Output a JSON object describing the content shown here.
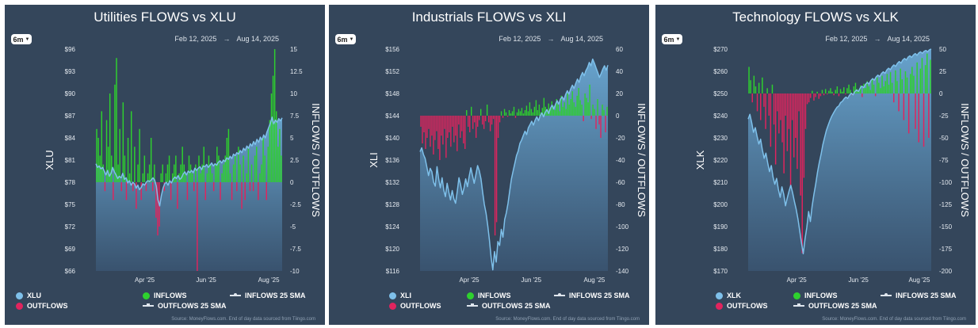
{
  "colors": {
    "background": "#34465b",
    "inflows": "#2ed12e",
    "outflows": "#e0245e",
    "price_line": "#7ec0ea",
    "price_fill_top": "#6aa8d3",
    "price_fill_bottom": "#3a5572"
  },
  "legend": {
    "price_label_xlu": "XLU",
    "price_label_xli": "XLI",
    "price_label_xlk": "XLK",
    "inflows": "INFLOWS",
    "outflows": "OUTFLOWS",
    "inflows_sma": "INFLOWS 25 SMA",
    "outflows_sma": "OUTFLOWS 25 SMA"
  },
  "source": "Source: MoneyFlows.com. End of day data sourced from Tiingo.com",
  "chart_data": [
    {
      "type": "bar",
      "title": "Utilities FLOWS vs XLU",
      "range_button": "6m",
      "date_from": "Feb 12, 2025",
      "date_to": "Aug 14, 2025",
      "ylabel_left": "XLU",
      "ylabel_right": "INFLOWS / OUTFLOWS",
      "x_ticks": [
        "Apr '25",
        "Jun '25",
        "Aug '25"
      ],
      "left_ticks": [
        "$66",
        "$69",
        "$72",
        "$75",
        "$78",
        "$81",
        "$84",
        "$87",
        "$90",
        "$93",
        "$96"
      ],
      "left_range": [
        66,
        96
      ],
      "right_ticks": [
        "-10",
        "-7.5",
        "-5",
        "-2.5",
        "0",
        "2.5",
        "5",
        "7.5",
        "10",
        "12.5",
        "15"
      ],
      "right_range": [
        -10,
        15
      ],
      "flows": [
        6,
        5,
        3,
        8,
        2,
        -1,
        7,
        4,
        10,
        3,
        -2,
        11,
        14,
        2,
        6,
        -1,
        9,
        3,
        -2,
        5,
        1,
        8,
        -1,
        4,
        -3,
        2,
        6,
        -2,
        1,
        3,
        -1,
        1,
        2,
        5,
        -1,
        2,
        -4,
        -6,
        -5,
        1,
        2,
        -1,
        1,
        2,
        3,
        -2,
        1,
        2,
        3,
        -3,
        1,
        2,
        4,
        2,
        1,
        -2,
        3,
        2,
        1,
        -1,
        2,
        -10,
        3,
        1,
        2,
        4,
        -2,
        1,
        3,
        2,
        1,
        -1,
        2,
        4,
        3,
        -2,
        1,
        2,
        3,
        5,
        6,
        1,
        -2,
        2,
        3,
        -1,
        4,
        2,
        -3,
        3,
        -2,
        1,
        4,
        -1,
        2,
        -1,
        3,
        4,
        -2,
        1,
        2,
        5,
        3,
        -2,
        4,
        7,
        10,
        12,
        15,
        8,
        4,
        6,
        3
      ],
      "price": [
        80.5,
        80.0,
        80.2,
        79.8,
        80.0,
        79.5,
        79.0,
        79.6,
        78.8,
        79.2,
        80.0,
        79.4,
        79.0,
        78.5,
        78.8,
        78.6,
        79.2,
        78.4,
        78.6,
        77.9,
        78.2,
        77.6,
        78.0,
        77.8,
        77.2,
        77.6,
        77.0,
        77.3,
        77.8,
        77.6,
        78.0,
        78.2,
        78.1,
        78.3,
        78.6,
        78.3,
        77.5,
        75.6,
        74.8,
        76.2,
        77.2,
        77.8,
        78.0,
        77.6,
        78.2,
        77.9,
        78.4,
        78.7,
        78.5,
        78.9,
        78.4,
        78.6,
        79.1,
        79.4,
        79.0,
        79.5,
        79.3,
        79.6,
        79.3,
        79.9,
        79.6,
        79.9,
        80.1,
        79.7,
        80.2,
        80.1,
        80.4,
        80.0,
        80.3,
        80.6,
        80.2,
        80.5,
        80.3,
        80.7,
        80.9,
        80.6,
        81.0,
        80.8,
        81.3,
        81.1,
        81.5,
        81.2,
        81.8,
        81.6,
        82.0,
        81.8,
        82.3,
        82.0,
        82.6,
        82.3,
        82.9,
        82.6,
        83.2,
        82.9,
        83.5,
        83.1,
        83.8,
        83.4,
        84.1,
        83.7,
        84.4,
        84.0,
        84.8,
        85.4,
        86.0,
        86.8,
        85.9,
        86.4,
        86.1,
        86.6,
        86.3,
        86.7
      ]
    },
    {
      "type": "bar",
      "title": "Industrials FLOWS vs XLI",
      "range_button": "6m",
      "date_from": "Feb 12, 2025",
      "date_to": "Aug 14, 2025",
      "ylabel_left": "XLI",
      "ylabel_right": "INFLOWS / OUTFLOWS",
      "x_ticks": [
        "Apr '25",
        "Jun '25",
        "Aug '25"
      ],
      "left_ticks": [
        "$116",
        "$120",
        "$124",
        "$128",
        "$132",
        "$136",
        "$140",
        "$144",
        "$148",
        "$152",
        "$156"
      ],
      "left_range": [
        116,
        156
      ],
      "right_ticks": [
        "-140",
        "-120",
        "-100",
        "-80",
        "-60",
        "-40",
        "-20",
        "0",
        "20",
        "40",
        "60"
      ],
      "right_range": [
        -140,
        60
      ],
      "flows": [
        -10,
        -25,
        -15,
        -30,
        -20,
        -12,
        -28,
        -18,
        -35,
        -22,
        -14,
        -30,
        -40,
        -18,
        -26,
        -12,
        -38,
        -20,
        -15,
        -28,
        -10,
        -24,
        -18,
        -32,
        -8,
        -20,
        -14,
        -25,
        -30,
        5,
        -10,
        -15,
        8,
        -12,
        -6,
        -20,
        -10,
        -4,
        6,
        -8,
        -12,
        -5,
        10,
        -6,
        -14,
        -8,
        -3,
        -108,
        -96,
        -20,
        -6,
        4,
        -2,
        6,
        3,
        -1,
        5,
        2,
        4,
        8,
        -2,
        3,
        6,
        4,
        7,
        2,
        5,
        9,
        4,
        12,
        6,
        3,
        8,
        14,
        5,
        10,
        3,
        7,
        16,
        8,
        4,
        11,
        6,
        13,
        9,
        5,
        15,
        10,
        4,
        18,
        8,
        12,
        6,
        20,
        10,
        15,
        22,
        12,
        8,
        18,
        25,
        14,
        10,
        -5,
        20,
        16,
        12,
        28,
        -3,
        10,
        6,
        -12,
        15,
        -8,
        -20,
        10,
        5,
        -15,
        8
      ],
      "price": [
        137.5,
        138.2,
        137.0,
        136.3,
        134.8,
        133.2,
        134.5,
        133.9,
        132.0,
        131.3,
        134.8,
        132.6,
        131.0,
        132.8,
        130.6,
        129.4,
        131.8,
        130.2,
        128.8,
        130.5,
        129.0,
        128.2,
        130.4,
        132.8,
        131.5,
        129.8,
        131.0,
        132.6,
        131.2,
        133.0,
        134.6,
        133.2,
        131.8,
        133.4,
        135.0,
        134.1,
        132.6,
        130.2,
        128.0,
        126.4,
        124.2,
        121.6,
        118.4,
        116.2,
        119.5,
        117.6,
        121.3,
        120.6,
        123.5,
        122.1,
        125.3,
        126.5,
        128.2,
        130.5,
        132.6,
        134.0,
        135.4,
        136.8,
        137.6,
        139.0,
        139.6,
        140.4,
        141.2,
        140.6,
        141.8,
        142.4,
        143.0,
        142.3,
        143.2,
        143.8,
        143.1,
        144.0,
        144.5,
        143.8,
        144.6,
        145.1,
        144.4,
        145.3,
        145.9,
        145.2,
        146.0,
        146.7,
        146.1,
        147.0,
        147.4,
        146.8,
        147.8,
        148.5,
        147.9,
        148.8,
        149.5,
        148.9,
        149.8,
        150.6,
        150.0,
        151.1,
        151.8,
        151.2,
        152.1,
        152.7,
        153.6,
        153.0,
        154.2,
        153.5,
        152.6,
        151.8,
        150.9,
        151.6,
        152.4,
        153.0,
        152.2,
        153.1
      ],
      "price_offset_start": 0
    },
    {
      "type": "bar",
      "title": "Technology FLOWS vs XLK",
      "range_button": "6m",
      "date_from": "Feb 12, 2025",
      "date_to": "Aug 14, 2025",
      "ylabel_left": "XLK",
      "ylabel_right": "INFLOWS / OUTFLOWS",
      "x_ticks": [
        "Apr '25",
        "Jun '25",
        "Aug '25"
      ],
      "left_ticks": [
        "$170",
        "$180",
        "$190",
        "$200",
        "$210",
        "$220",
        "$230",
        "$240",
        "$250",
        "$260",
        "$270"
      ],
      "left_range": [
        170,
        270
      ],
      "right_ticks": [
        "-200",
        "-175",
        "-150",
        "-125",
        "-100",
        "-75",
        "-50",
        "-25",
        "0",
        "25",
        "50"
      ],
      "right_range": [
        -200,
        50
      ],
      "flows": [
        30,
        15,
        -10,
        20,
        8,
        -20,
        12,
        -30,
        18,
        -15,
        -40,
        6,
        -25,
        -60,
        10,
        -35,
        -80,
        -20,
        -45,
        -30,
        -55,
        -90,
        -25,
        -65,
        -40,
        -105,
        -30,
        -72,
        -50,
        -85,
        -20,
        -115,
        -180,
        -95,
        -40,
        -12,
        -10,
        -5,
        3,
        -8,
        -4,
        2,
        -6,
        -3,
        4,
        -2,
        5,
        -1,
        3,
        6,
        2,
        -2,
        4,
        8,
        -3,
        5,
        2,
        7,
        -1,
        6,
        10,
        4,
        -2,
        8,
        12,
        5,
        3,
        9,
        -4,
        11,
        6,
        14,
        8,
        4,
        16,
        10,
        -3,
        18,
        12,
        6,
        20,
        8,
        14,
        22,
        10,
        24,
        12,
        -10,
        26,
        14,
        -20,
        28,
        16,
        -30,
        25,
        18,
        -45,
        22,
        30,
        20,
        -40,
        35,
        -55,
        28,
        40,
        -60,
        32,
        45,
        -50,
        38
      ],
      "price": [
        238.5,
        240.6,
        236.8,
        232.5,
        234.6,
        230.8,
        227.2,
        229.4,
        224.6,
        220.8,
        223.1,
        218.6,
        214.8,
        217.5,
        212.3,
        209.1,
        211.7,
        206.8,
        203.2,
        207.9,
        204.5,
        199.4,
        202.8,
        206.0,
        208.6,
        205.2,
        201.4,
        197.8,
        193.5,
        188.2,
        182.6,
        177.8,
        184.5,
        189.6,
        196.8,
        192.3,
        199.2,
        204.6,
        209.1,
        214.5,
        218.8,
        222.6,
        226.9,
        230.1,
        233.4,
        235.6,
        237.9,
        239.7,
        241.2,
        242.6,
        243.8,
        244.4,
        245.9,
        246.5,
        247.6,
        248.4,
        247.8,
        249.2,
        250.1,
        249.4,
        250.8,
        251.6,
        250.9,
        252.4,
        253.3,
        252.6,
        254.1,
        255.0,
        254.3,
        255.8,
        256.7,
        256.0,
        257.5,
        258.3,
        257.6,
        259.0,
        259.8,
        259.1,
        260.6,
        261.4,
        260.7,
        262.1,
        262.9,
        262.2,
        263.6,
        264.4,
        263.7,
        265.1,
        265.8,
        265.1,
        266.4,
        267.0,
        266.3,
        267.4,
        268.0,
        267.2,
        268.3,
        268.8,
        268.1,
        269.0,
        269.4,
        268.8,
        269.7,
        270.0
      ]
    }
  ]
}
